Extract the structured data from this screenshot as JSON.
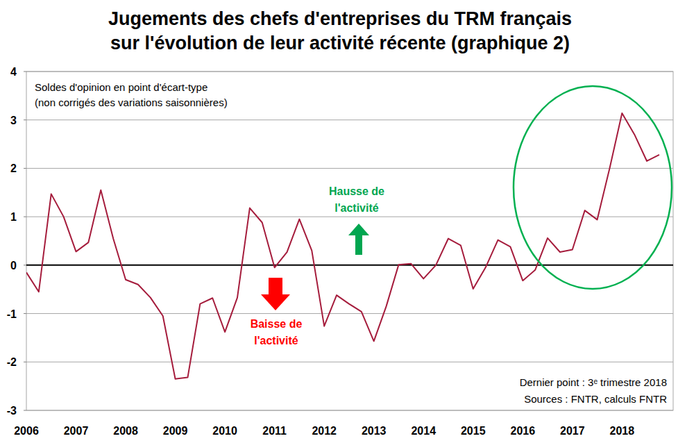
{
  "chart_data": {
    "type": "line",
    "title": [
      "Jugements des chefs d'entreprises du TRM français",
      "sur l'évolution de leur activité récente (graphique 2)"
    ],
    "annotations": [
      "Soldes d'opinion en point d'écart-type",
      "(non corrigés des variations saisonnières)",
      "Hausse de",
      "l'activité",
      "Baisse de",
      "l'activité",
      "Dernier point : 3ᵉ trimestre 2018",
      "Sources : FNTR, calculs FNTR"
    ],
    "categories": [
      "2006",
      null,
      null,
      null,
      "2007",
      null,
      null,
      null,
      "2008",
      null,
      null,
      null,
      "2009",
      null,
      null,
      null,
      "2010",
      null,
      null,
      null,
      "2011",
      null,
      null,
      null,
      "2012",
      null,
      null,
      null,
      "2013",
      null,
      null,
      null,
      "2014",
      null,
      null,
      null,
      "2015",
      null,
      null,
      null,
      "2016",
      null,
      null,
      null,
      "2017",
      null,
      null,
      null,
      "2018",
      null,
      null,
      null
    ],
    "values": [
      -0.15,
      -0.55,
      1.47,
      1.0,
      0.28,
      0.47,
      1.55,
      0.55,
      -0.3,
      -0.4,
      -0.67,
      -1.05,
      -2.35,
      -2.32,
      -0.8,
      -0.68,
      -1.38,
      -0.67,
      1.18,
      0.88,
      -0.05,
      0.27,
      0.95,
      0.3,
      -1.26,
      -0.62,
      -0.8,
      -0.96,
      -1.57,
      -0.85,
      0.01,
      0.03,
      -0.28,
      0.0,
      0.55,
      0.41,
      -0.49,
      -0.05,
      0.52,
      0.38,
      -0.32,
      -0.1,
      0.56,
      0.27,
      0.32,
      1.13,
      0.94,
      2.0,
      3.14,
      2.7,
      2.15,
      2.28
    ],
    "color": "#a51c3c",
    "ylim": [
      -3,
      4
    ],
    "yticks": [
      -3,
      -2,
      -1,
      0,
      1,
      2,
      3,
      4
    ],
    "grid": true
  }
}
